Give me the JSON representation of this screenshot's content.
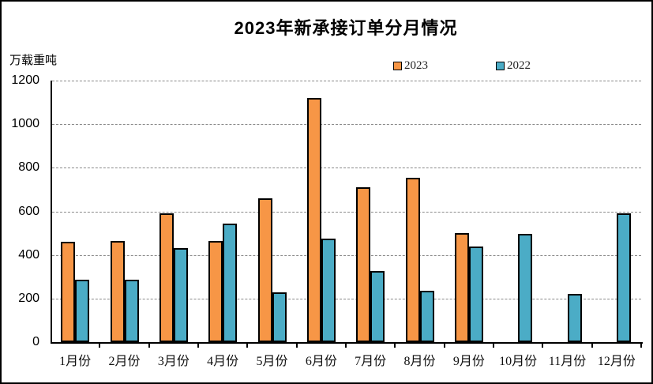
{
  "chart_data": {
    "type": "bar",
    "title": "2023年新承接订单分月情况",
    "ylabel": "万载重吨",
    "xlabel": "",
    "ylim": [
      0,
      1200
    ],
    "yticks": [
      0,
      200,
      400,
      600,
      800,
      1000,
      1200
    ],
    "grid": "horizontal-dashed",
    "legend_position": "top-center",
    "categories": [
      "1月份",
      "2月份",
      "3月份",
      "4月份",
      "5月份",
      "6月份",
      "7月份",
      "8月份",
      "9月份",
      "10月份",
      "11月份",
      "12月份"
    ],
    "series": [
      {
        "name": "2023",
        "color": "#F79646",
        "values": [
          460,
          465,
          590,
          465,
          660,
          1120,
          710,
          755,
          500,
          null,
          null,
          null
        ]
      },
      {
        "name": "2022",
        "color": "#4BACC6",
        "values": [
          285,
          285,
          430,
          545,
          230,
          475,
          325,
          235,
          440,
          495,
          220,
          590
        ]
      }
    ],
    "bar_border_color": "#000000",
    "axis_color": "#000000",
    "gridline_color": "#8a8a8a",
    "background": "#ffffff"
  }
}
